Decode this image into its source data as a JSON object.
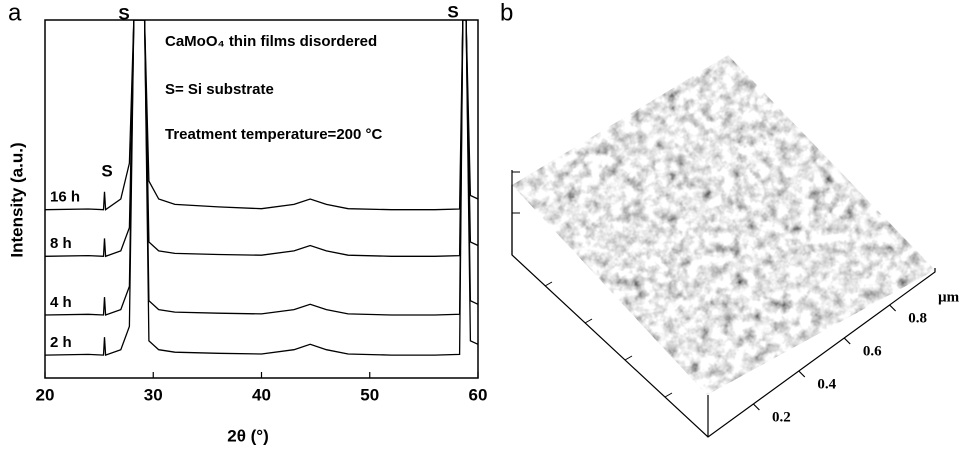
{
  "chart_data": [
    {
      "type": "line",
      "panel_label": "a",
      "xlabel": "2θ (°)",
      "ylabel": "Intensity (a.u.)",
      "xlim": [
        20,
        60
      ],
      "xticks": [
        20,
        30,
        40,
        50,
        60
      ],
      "ylim": [
        0,
        100
      ],
      "color": "#000000",
      "annotations": [
        "S",
        "S",
        "S",
        "CaMoO₄ thin films disordered",
        "S= Si substrate",
        "Treatment temperature=200 °C"
      ],
      "x": [
        20,
        24,
        25.4,
        25.5,
        25.6,
        27,
        27.8,
        28.2,
        28.5,
        28.8,
        29.2,
        29.6,
        30.5,
        32,
        36,
        40,
        43,
        44.5,
        46,
        48,
        52,
        56,
        58.3,
        58.6,
        58.9,
        59.3,
        60
      ],
      "series": [
        {
          "name": "2 h",
          "values": [
            6.4,
            6.6,
            6.4,
            11.4,
            6.4,
            7.9,
            14.4,
            100,
            100,
            100,
            100,
            10.4,
            7.9,
            7.2,
            6.9,
            6.7,
            7.9,
            9.4,
            7.9,
            6.7,
            6.4,
            6.4,
            6.6,
            100,
            100,
            10.4,
            9.4
          ]
        },
        {
          "name": "4 h",
          "values": [
            17.6,
            17.8,
            17.6,
            22.6,
            17.6,
            19.1,
            25.6,
            100,
            100,
            100,
            100,
            21.6,
            19.1,
            18.4,
            18.1,
            17.9,
            19.1,
            20.6,
            19.1,
            17.9,
            17.6,
            17.6,
            17.8,
            100,
            100,
            21.6,
            20.6
          ]
        },
        {
          "name": "8 h",
          "values": [
            34,
            34.2,
            34,
            39,
            34,
            35.5,
            42,
            100,
            100,
            100,
            100,
            38,
            35.5,
            34.8,
            34.5,
            34.3,
            35.5,
            37,
            35.5,
            34.3,
            34,
            34,
            34.2,
            100,
            100,
            38,
            37
          ]
        },
        {
          "name": "16 h",
          "values": [
            47,
            47.2,
            47,
            52,
            47,
            50,
            60,
            100,
            100,
            100,
            100,
            55,
            50,
            48.5,
            47.8,
            47.3,
            48.5,
            50,
            48.5,
            47.3,
            47,
            47,
            47.2,
            100,
            100,
            51,
            50
          ]
        }
      ]
    },
    {
      "type": "surface",
      "panel_label": "b",
      "unit_label": "µm",
      "ylim": [
        0,
        1
      ],
      "yticks": [
        0.2,
        0.4,
        0.6,
        0.8
      ]
    }
  ]
}
